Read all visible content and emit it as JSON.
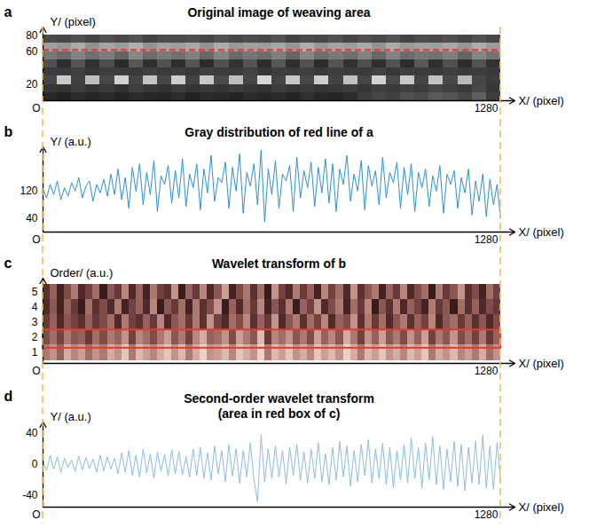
{
  "chart_data": [
    {
      "panel": "a",
      "type": "image",
      "title": "Original image of weaving area",
      "xlabel": "X/ (pixel)",
      "ylabel": "Y/ (pixel)",
      "xlim": [
        0,
        1320
      ],
      "xticks": [
        {
          "value": 0,
          "label": "O"
        },
        1280
      ],
      "ylim": [
        0,
        90
      ],
      "yticks": [
        20,
        60,
        80
      ],
      "x_bins": [
        0,
        40,
        80,
        120,
        160,
        200,
        240,
        280,
        320,
        360,
        400,
        440,
        480,
        520,
        560,
        600,
        640,
        680,
        720,
        760,
        800,
        840,
        880,
        920,
        960,
        1000,
        1040,
        1080,
        1120,
        1160,
        1200,
        1240,
        1280
      ],
      "y_bins": [
        0,
        10,
        20,
        30,
        40,
        50,
        60,
        70,
        80
      ],
      "zlim": [
        0,
        255
      ],
      "cells": [
        [
          40,
          35,
          45,
          38,
          42,
          36,
          44,
          40,
          38,
          46,
          35,
          42,
          40,
          37,
          45,
          39,
          43,
          36,
          48,
          40,
          38,
          44,
          60,
          70,
          65,
          80,
          75,
          90,
          85,
          70,
          95,
          60
        ],
        [
          55,
          50,
          60,
          52,
          58,
          48,
          62,
          55,
          50,
          60,
          53,
          57,
          52,
          59,
          55,
          50,
          61,
          54,
          58,
          52,
          56,
          60,
          55,
          62,
          58,
          65,
          60,
          70,
          64,
          58,
          72,
          55
        ],
        [
          70,
          200,
          65,
          190,
          72,
          210,
          68,
          195,
          70,
          205,
          66,
          200,
          74,
          190,
          70,
          215,
          68,
          198,
          72,
          205,
          66,
          192,
          70,
          210,
          74,
          200,
          68,
          195,
          72,
          185,
          70,
          60
        ],
        [
          60,
          58,
          65,
          55,
          62,
          60,
          57,
          64,
          59,
          61,
          56,
          63,
          60,
          58,
          66,
          55,
          62,
          59,
          64,
          57,
          61,
          60,
          58,
          65,
          56,
          62,
          60,
          57,
          63,
          59,
          61,
          58
        ],
        [
          80,
          45,
          85,
          50,
          78,
          42,
          88,
          48,
          82,
          46,
          86,
          44,
          80,
          50,
          84,
          45,
          87,
          47,
          81,
          43,
          85,
          49,
          79,
          46,
          83,
          44,
          88,
          48,
          80,
          45,
          84,
          50
        ],
        [
          120,
          105,
          130,
          110,
          125,
          100,
          135,
          108,
          122,
          112,
          128,
          104,
          132,
          106,
          118,
          110,
          126,
          102,
          134,
          109,
          121,
          111,
          129,
          103,
          131,
          107,
          119,
          113,
          127,
          101,
          133,
          115
        ],
        [
          160,
          150,
          170,
          145,
          165,
          155,
          175,
          148,
          162,
          158,
          168,
          146,
          172,
          152,
          160,
          156,
          166,
          149,
          174,
          151,
          163,
          157,
          169,
          147,
          171,
          153,
          161,
          159,
          167,
          150,
          173,
          155
        ],
        [
          75,
          70,
          80,
          68,
          78,
          72,
          82,
          66,
          76,
          74,
          79,
          69,
          81,
          71,
          77,
          73,
          83,
          67,
          75,
          70,
          80,
          68,
          78,
          72,
          82,
          66,
          76,
          74,
          79,
          69,
          81,
          71
        ]
      ],
      "line": {
        "y": 62,
        "color": "#e33b2e",
        "line_style": "dashed"
      }
    },
    {
      "panel": "b",
      "type": "line",
      "title": "Gray distribution of red line of a",
      "xlabel": "X/ (pixel)",
      "ylabel": "Y/ (a.u.)",
      "xlim": [
        0,
        1320
      ],
      "xticks": [
        {
          "value": 0,
          "label": "O"
        },
        1280
      ],
      "ylim": [
        0,
        250
      ],
      "yticks": [
        40,
        120
      ],
      "color": "#2f8fd6",
      "x": [
        0,
        10,
        20,
        30,
        40,
        50,
        60,
        70,
        80,
        90,
        100,
        110,
        120,
        130,
        140,
        150,
        160,
        170,
        180,
        190,
        200,
        210,
        220,
        230,
        240,
        250,
        260,
        270,
        280,
        290,
        300,
        310,
        320,
        330,
        340,
        350,
        360,
        370,
        380,
        390,
        400,
        410,
        420,
        430,
        440,
        450,
        460,
        470,
        480,
        490,
        500,
        510,
        520,
        530,
        540,
        550,
        560,
        570,
        580,
        590,
        600,
        610,
        620,
        630,
        640,
        650,
        660,
        670,
        680,
        690,
        700,
        710,
        720,
        730,
        740,
        750,
        760,
        770,
        780,
        790,
        800,
        810,
        820,
        830,
        840,
        850,
        860,
        870,
        880,
        890,
        900,
        910,
        920,
        930,
        940,
        950,
        960,
        970,
        980,
        990,
        1000,
        1010,
        1020,
        1030,
        1040,
        1050,
        1060,
        1070,
        1080,
        1090,
        1100,
        1110,
        1120,
        1130,
        1140,
        1150,
        1160,
        1170,
        1180,
        1190,
        1200,
        1210,
        1220,
        1230,
        1240,
        1250,
        1260,
        1270,
        1280
      ],
      "values": [
        125,
        100,
        140,
        110,
        150,
        95,
        130,
        105,
        145,
        120,
        160,
        100,
        135,
        150,
        90,
        140,
        115,
        155,
        105,
        170,
        110,
        185,
        95,
        160,
        70,
        190,
        120,
        200,
        80,
        175,
        110,
        210,
        60,
        165,
        140,
        195,
        85,
        180,
        100,
        215,
        75,
        170,
        130,
        200,
        65,
        185,
        115,
        225,
        90,
        160,
        145,
        205,
        70,
        190,
        120,
        230,
        55,
        175,
        135,
        200,
        80,
        240,
        30,
        185,
        110,
        210,
        70,
        170,
        150,
        195,
        60,
        220,
        100,
        180,
        130,
        205,
        75,
        190,
        115,
        215,
        85,
        200,
        60,
        185,
        140,
        225,
        90,
        170,
        120,
        210,
        65,
        195,
        135,
        180,
        80,
        220,
        100,
        175,
        145,
        205,
        70,
        190,
        110,
        200,
        60,
        175,
        130,
        185,
        75,
        165,
        120,
        195,
        55,
        170,
        140,
        180,
        70,
        160,
        115,
        185,
        50,
        150,
        90,
        170,
        45,
        155,
        80,
        140,
        40
      ]
    },
    {
      "panel": "c",
      "type": "heatmap",
      "title": "Wavelet transform of b",
      "xlabel": "X/ (pixel)",
      "ylabel": "Order/ (a.u.)",
      "xlim": [
        0,
        1320
      ],
      "xticks": [
        {
          "value": 0,
          "label": "O"
        },
        1280
      ],
      "ylim": [
        0.3,
        5.9
      ],
      "yticks": [
        1,
        2,
        3,
        4,
        5
      ],
      "x_bins": [
        0,
        20,
        40,
        60,
        80,
        100,
        120,
        140,
        160,
        180,
        200,
        220,
        240,
        260,
        280,
        300,
        320,
        340,
        360,
        380,
        400,
        420,
        440,
        460,
        480,
        500,
        520,
        540,
        560,
        580,
        600,
        620,
        640,
        660,
        680,
        700,
        720,
        740,
        760,
        780,
        800,
        820,
        840,
        860,
        880,
        900,
        920,
        940,
        960,
        980,
        1000,
        1020,
        1040,
        1060,
        1080,
        1100,
        1120,
        1140,
        1160,
        1180,
        1200,
        1220,
        1240,
        1260,
        1280
      ],
      "y_bins": [
        0.5,
        1.5,
        2.5,
        3.5,
        4.5,
        5.5
      ],
      "zlim": [
        0,
        1
      ],
      "cells": [
        [
          0.6,
          0.7,
          0.5,
          0.8,
          0.65,
          0.75,
          0.55,
          0.7,
          0.6,
          0.8,
          0.7,
          0.9,
          0.6,
          0.85,
          0.75,
          0.65,
          0.8,
          0.9,
          0.7,
          0.85,
          0.6,
          0.8,
          0.95,
          0.7,
          0.75,
          0.85,
          0.65,
          0.9,
          0.8,
          0.7,
          0.95,
          0.6,
          0.85,
          0.75,
          0.9,
          0.7,
          0.8,
          0.65,
          0.9,
          0.75,
          0.85,
          0.7,
          0.95,
          0.8,
          0.6,
          0.85,
          0.75,
          0.9,
          0.7,
          0.8,
          0.65,
          0.85,
          0.75,
          0.9,
          0.6,
          0.8,
          0.7,
          0.85,
          0.65,
          0.75,
          0.6,
          0.8,
          0.55,
          0.7
        ],
        [
          0.4,
          0.55,
          0.35,
          0.6,
          0.45,
          0.5,
          0.3,
          0.55,
          0.4,
          0.6,
          0.5,
          0.7,
          0.35,
          0.65,
          0.55,
          0.4,
          0.6,
          0.75,
          0.45,
          0.6,
          0.35,
          0.65,
          0.8,
          0.5,
          0.55,
          0.7,
          0.4,
          0.75,
          0.6,
          0.45,
          0.85,
          0.3,
          0.65,
          0.55,
          0.7,
          0.45,
          0.6,
          0.4,
          0.75,
          0.5,
          0.65,
          0.45,
          0.8,
          0.6,
          0.35,
          0.7,
          0.5,
          0.75,
          0.45,
          0.6,
          0.4,
          0.7,
          0.5,
          0.75,
          0.35,
          0.6,
          0.45,
          0.7,
          0.4,
          0.55,
          0.35,
          0.6,
          0.3,
          0.5
        ],
        [
          0.3,
          0.5,
          0.2,
          0.45,
          0.35,
          0.25,
          0.5,
          0.3,
          0.4,
          0.55,
          0.2,
          0.6,
          0.35,
          0.25,
          0.5,
          0.3,
          0.65,
          0.2,
          0.45,
          0.55,
          0.3,
          0.6,
          0.25,
          0.7,
          0.35,
          0.2,
          0.55,
          0.4,
          0.65,
          0.25,
          0.5,
          0.3,
          0.7,
          0.2,
          0.45,
          0.6,
          0.25,
          0.55,
          0.35,
          0.65,
          0.2,
          0.5,
          0.4,
          0.7,
          0.25,
          0.6,
          0.3,
          0.55,
          0.2,
          0.45,
          0.6,
          0.25,
          0.5,
          0.35,
          0.65,
          0.2,
          0.45,
          0.55,
          0.3,
          0.5,
          0.25,
          0.45,
          0.2,
          0.4
        ],
        [
          0.2,
          0.45,
          0.15,
          0.5,
          0.3,
          0.1,
          0.55,
          0.25,
          0.4,
          0.2,
          0.6,
          0.15,
          0.35,
          0.5,
          0.2,
          0.65,
          0.1,
          0.45,
          0.3,
          0.55,
          0.15,
          0.6,
          0.25,
          0.4,
          0.7,
          0.1,
          0.5,
          0.2,
          0.55,
          0.3,
          0.65,
          0.15,
          0.45,
          0.25,
          0.6,
          0.1,
          0.5,
          0.35,
          0.7,
          0.2,
          0.4,
          0.6,
          0.15,
          0.55,
          0.3,
          0.65,
          0.1,
          0.45,
          0.25,
          0.6,
          0.2,
          0.5,
          0.35,
          0.15,
          0.6,
          0.3,
          0.45,
          0.1,
          0.55,
          0.25,
          0.5,
          0.2,
          0.4,
          0.3
        ],
        [
          0.25,
          0.5,
          0.15,
          0.4,
          0.6,
          0.2,
          0.35,
          0.55,
          0.1,
          0.45,
          0.3,
          0.65,
          0.2,
          0.5,
          0.15,
          0.6,
          0.35,
          0.25,
          0.7,
          0.1,
          0.5,
          0.3,
          0.65,
          0.2,
          0.45,
          0.75,
          0.15,
          0.4,
          0.6,
          0.25,
          0.55,
          0.1,
          0.7,
          0.35,
          0.2,
          0.6,
          0.3,
          0.5,
          0.15,
          0.65,
          0.35,
          0.55,
          0.2,
          0.7,
          0.25,
          0.45,
          0.6,
          0.15,
          0.5,
          0.3,
          0.65,
          0.2,
          0.4,
          0.55,
          0.1,
          0.6,
          0.3,
          0.45,
          0.7,
          0.25,
          0.4,
          0.15,
          0.55,
          0.35
        ]
      ],
      "highlight": {
        "x": [
          0,
          1280
        ],
        "y": [
          1.3,
          2.5
        ],
        "color": "#e33b2e"
      }
    },
    {
      "panel": "d",
      "type": "line",
      "title": "Second-order wavelet transform (area in red box of c)",
      "xlabel": "X/ (pixel)",
      "ylabel": "Y/ (a.u.)",
      "xlim": [
        0,
        1320
      ],
      "xticks": [
        {
          "value": 0,
          "label": "O"
        },
        1280
      ],
      "ylim": [
        -55,
        55
      ],
      "yticks": [
        -40,
        0,
        40
      ],
      "color": "#8ebbe2",
      "x": [
        0,
        10,
        20,
        30,
        40,
        50,
        60,
        70,
        80,
        90,
        100,
        110,
        120,
        130,
        140,
        150,
        160,
        170,
        180,
        190,
        200,
        210,
        220,
        230,
        240,
        250,
        260,
        270,
        280,
        290,
        300,
        310,
        320,
        330,
        340,
        350,
        360,
        370,
        380,
        390,
        400,
        410,
        420,
        430,
        440,
        450,
        460,
        470,
        480,
        490,
        500,
        510,
        520,
        530,
        540,
        550,
        560,
        570,
        580,
        590,
        600,
        610,
        620,
        630,
        640,
        650,
        660,
        670,
        680,
        690,
        700,
        710,
        720,
        730,
        740,
        750,
        760,
        770,
        780,
        790,
        800,
        810,
        820,
        830,
        840,
        850,
        860,
        870,
        880,
        890,
        900,
        910,
        920,
        930,
        940,
        950,
        960,
        970,
        980,
        990,
        1000,
        1010,
        1020,
        1030,
        1040,
        1050,
        1060,
        1070,
        1080,
        1090,
        1100,
        1110,
        1120,
        1130,
        1140,
        1150,
        1160,
        1170,
        1180,
        1190,
        1200,
        1210,
        1220,
        1230,
        1240,
        1250,
        1260,
        1270,
        1280
      ],
      "values": [
        5,
        -8,
        12,
        -6,
        10,
        -10,
        8,
        -4,
        6,
        -9,
        11,
        -7,
        9,
        -5,
        7,
        -10,
        12,
        -8,
        10,
        -6,
        8,
        -12,
        15,
        -10,
        18,
        -14,
        12,
        -16,
        20,
        -11,
        14,
        -18,
        16,
        -9,
        13,
        -15,
        19,
        -12,
        17,
        -13,
        10,
        -16,
        20,
        -14,
        22,
        -18,
        15,
        -20,
        24,
        -12,
        18,
        -22,
        26,
        -15,
        20,
        -24,
        18,
        -16,
        28,
        -20,
        -48,
        38,
        -22,
        20,
        -18,
        24,
        -16,
        18,
        -25,
        22,
        -14,
        26,
        -20,
        16,
        -24,
        20,
        -18,
        28,
        -22,
        14,
        -26,
        22,
        -20,
        30,
        -16,
        24,
        -28,
        18,
        -22,
        26,
        -14,
        32,
        -24,
        20,
        -18,
        28,
        -26,
        22,
        -30,
        18,
        -20,
        26,
        -24,
        34,
        -18,
        22,
        -30,
        28,
        -20,
        36,
        -26,
        24,
        -32,
        20,
        -22,
        30,
        -28,
        26,
        -34,
        22,
        -24,
        30,
        -26,
        38,
        -30,
        24,
        -32,
        28,
        -22
      ]
    }
  ]
}
